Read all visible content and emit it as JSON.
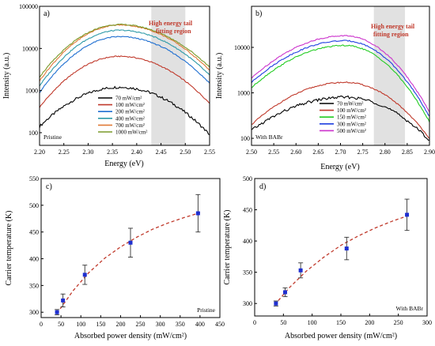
{
  "chart_data": [
    {
      "type": "line",
      "panel_label": "a)",
      "xlabel": "Energy (eV)",
      "ylabel": "Intensity (a.u.)",
      "xlim": [
        2.2,
        2.55
      ],
      "ylim": [
        50,
        100000
      ],
      "yscale": "log",
      "x_ticks": [
        "2.20",
        "2.25",
        "2.30",
        "2.35",
        "2.40",
        "2.45",
        "2.50",
        "2.55"
      ],
      "y_ticks": [
        "100",
        "1000",
        "10000",
        "100000"
      ],
      "annotation": "Pristine",
      "shaded_region": {
        "x": [
          2.43,
          2.5
        ],
        "label_line1": "High energy tail",
        "label_line2": "fitting region"
      },
      "legend_position": "bottom-center",
      "series": [
        {
          "name": "70 mW/cm²",
          "color": "#000000",
          "peak": 1200,
          "edge_left": 140,
          "edge_right": 90
        },
        {
          "name": "100 mW/cm²",
          "color": "#c0392b",
          "peak": 6500,
          "edge_left": 400,
          "edge_right": 500
        },
        {
          "name": "200 mW/cm²",
          "color": "#1f6fd1",
          "peak": 19000,
          "edge_left": 900,
          "edge_right": 1500
        },
        {
          "name": "400 mW/cm²",
          "color": "#2e9aa8",
          "peak": 27000,
          "edge_left": 1300,
          "edge_right": 2300
        },
        {
          "name": "700 mW/cm²",
          "color": "#e07b39",
          "peak": 36000,
          "edge_left": 1700,
          "edge_right": 3000
        },
        {
          "name": "1000 mW/cm²",
          "color": "#7a9a2a",
          "peak": 37000,
          "edge_left": 2100,
          "edge_right": 3600
        }
      ]
    },
    {
      "type": "line",
      "panel_label": "b)",
      "xlabel": "Energy (eV)",
      "ylabel": "Intensity (a.u.)",
      "xlim": [
        2.5,
        2.9
      ],
      "ylim": [
        70,
        80000
      ],
      "yscale": "log",
      "x_ticks": [
        "2.50",
        "2.55",
        "2.60",
        "2.65",
        "2.70",
        "2.75",
        "2.80",
        "2.85",
        "2.90"
      ],
      "y_ticks": [
        "100",
        "1000",
        "10000"
      ],
      "annotation": "With BABr",
      "shaded_region": {
        "x": [
          2.775,
          2.845
        ],
        "label_line1": "High energy tail",
        "label_line2": "fitting region"
      },
      "legend_position": "bottom-right",
      "series": [
        {
          "name": "70 mW/cm²",
          "color": "#000000",
          "peak": 800,
          "edge_left": 150,
          "edge_right": 90
        },
        {
          "name": "100 mW/cm²",
          "color": "#c0392b",
          "peak": 1700,
          "edge_left": 200,
          "edge_right": 100
        },
        {
          "name": "150 mW/cm²",
          "color": "#22cc22",
          "peak": 11000,
          "edge_left": 1300,
          "edge_right": 230
        },
        {
          "name": "300 mW/cm²",
          "color": "#1f3fe0",
          "peak": 14000,
          "edge_left": 1700,
          "edge_right": 300
        },
        {
          "name": "500 mW/cm²",
          "color": "#cc33cc",
          "peak": 18000,
          "edge_left": 2100,
          "edge_right": 380
        }
      ]
    },
    {
      "type": "scatter",
      "panel_label": "c)",
      "xlabel": "Absorbed power density (mW/cm²)",
      "ylabel": "Carrier temperature (K)",
      "xlim": [
        0,
        450
      ],
      "ylim": [
        290,
        550
      ],
      "x_ticks": [
        0,
        50,
        100,
        150,
        200,
        250,
        300,
        350,
        400,
        450
      ],
      "y_ticks": [
        300,
        350,
        400,
        450,
        500,
        550
      ],
      "annotation": "Pristine",
      "points": [
        {
          "x": 40,
          "y": 300,
          "err": 5
        },
        {
          "x": 55,
          "y": 322,
          "err": 12
        },
        {
          "x": 110,
          "y": 370,
          "err": 18
        },
        {
          "x": 225,
          "y": 430,
          "err": 27
        },
        {
          "x": 395,
          "y": 485,
          "err": 35
        }
      ],
      "fit": {
        "style": "dashed",
        "color": "#c0392b",
        "x": [
          40,
          80,
          120,
          160,
          200,
          240,
          280,
          320,
          360,
          400
        ],
        "y": [
          298,
          340,
          374,
          401,
          422,
          440,
          455,
          467,
          477,
          486
        ]
      }
    },
    {
      "type": "scatter",
      "panel_label": "d)",
      "xlabel": "Absorbed power density (mW/cm²)",
      "ylabel": "Carrier temperature (K)",
      "xlim": [
        0,
        300
      ],
      "ylim": [
        280,
        500
      ],
      "x_ticks": [
        0,
        50,
        100,
        150,
        200,
        250,
        300
      ],
      "y_ticks": [
        300,
        350,
        400,
        450,
        500
      ],
      "annotation": "With BABr",
      "points": [
        {
          "x": 37,
          "y": 300,
          "err": 4
        },
        {
          "x": 53,
          "y": 318,
          "err": 7
        },
        {
          "x": 80,
          "y": 353,
          "err": 12
        },
        {
          "x": 160,
          "y": 388,
          "err": 18
        },
        {
          "x": 265,
          "y": 442,
          "err": 25
        }
      ],
      "fit": {
        "style": "dashed",
        "color": "#c0392b",
        "x": [
          35,
          60,
          90,
          120,
          150,
          180,
          210,
          240,
          265
        ],
        "y": [
          298,
          325,
          352,
          374,
          393,
          408,
          421,
          432,
          440
        ]
      }
    }
  ]
}
